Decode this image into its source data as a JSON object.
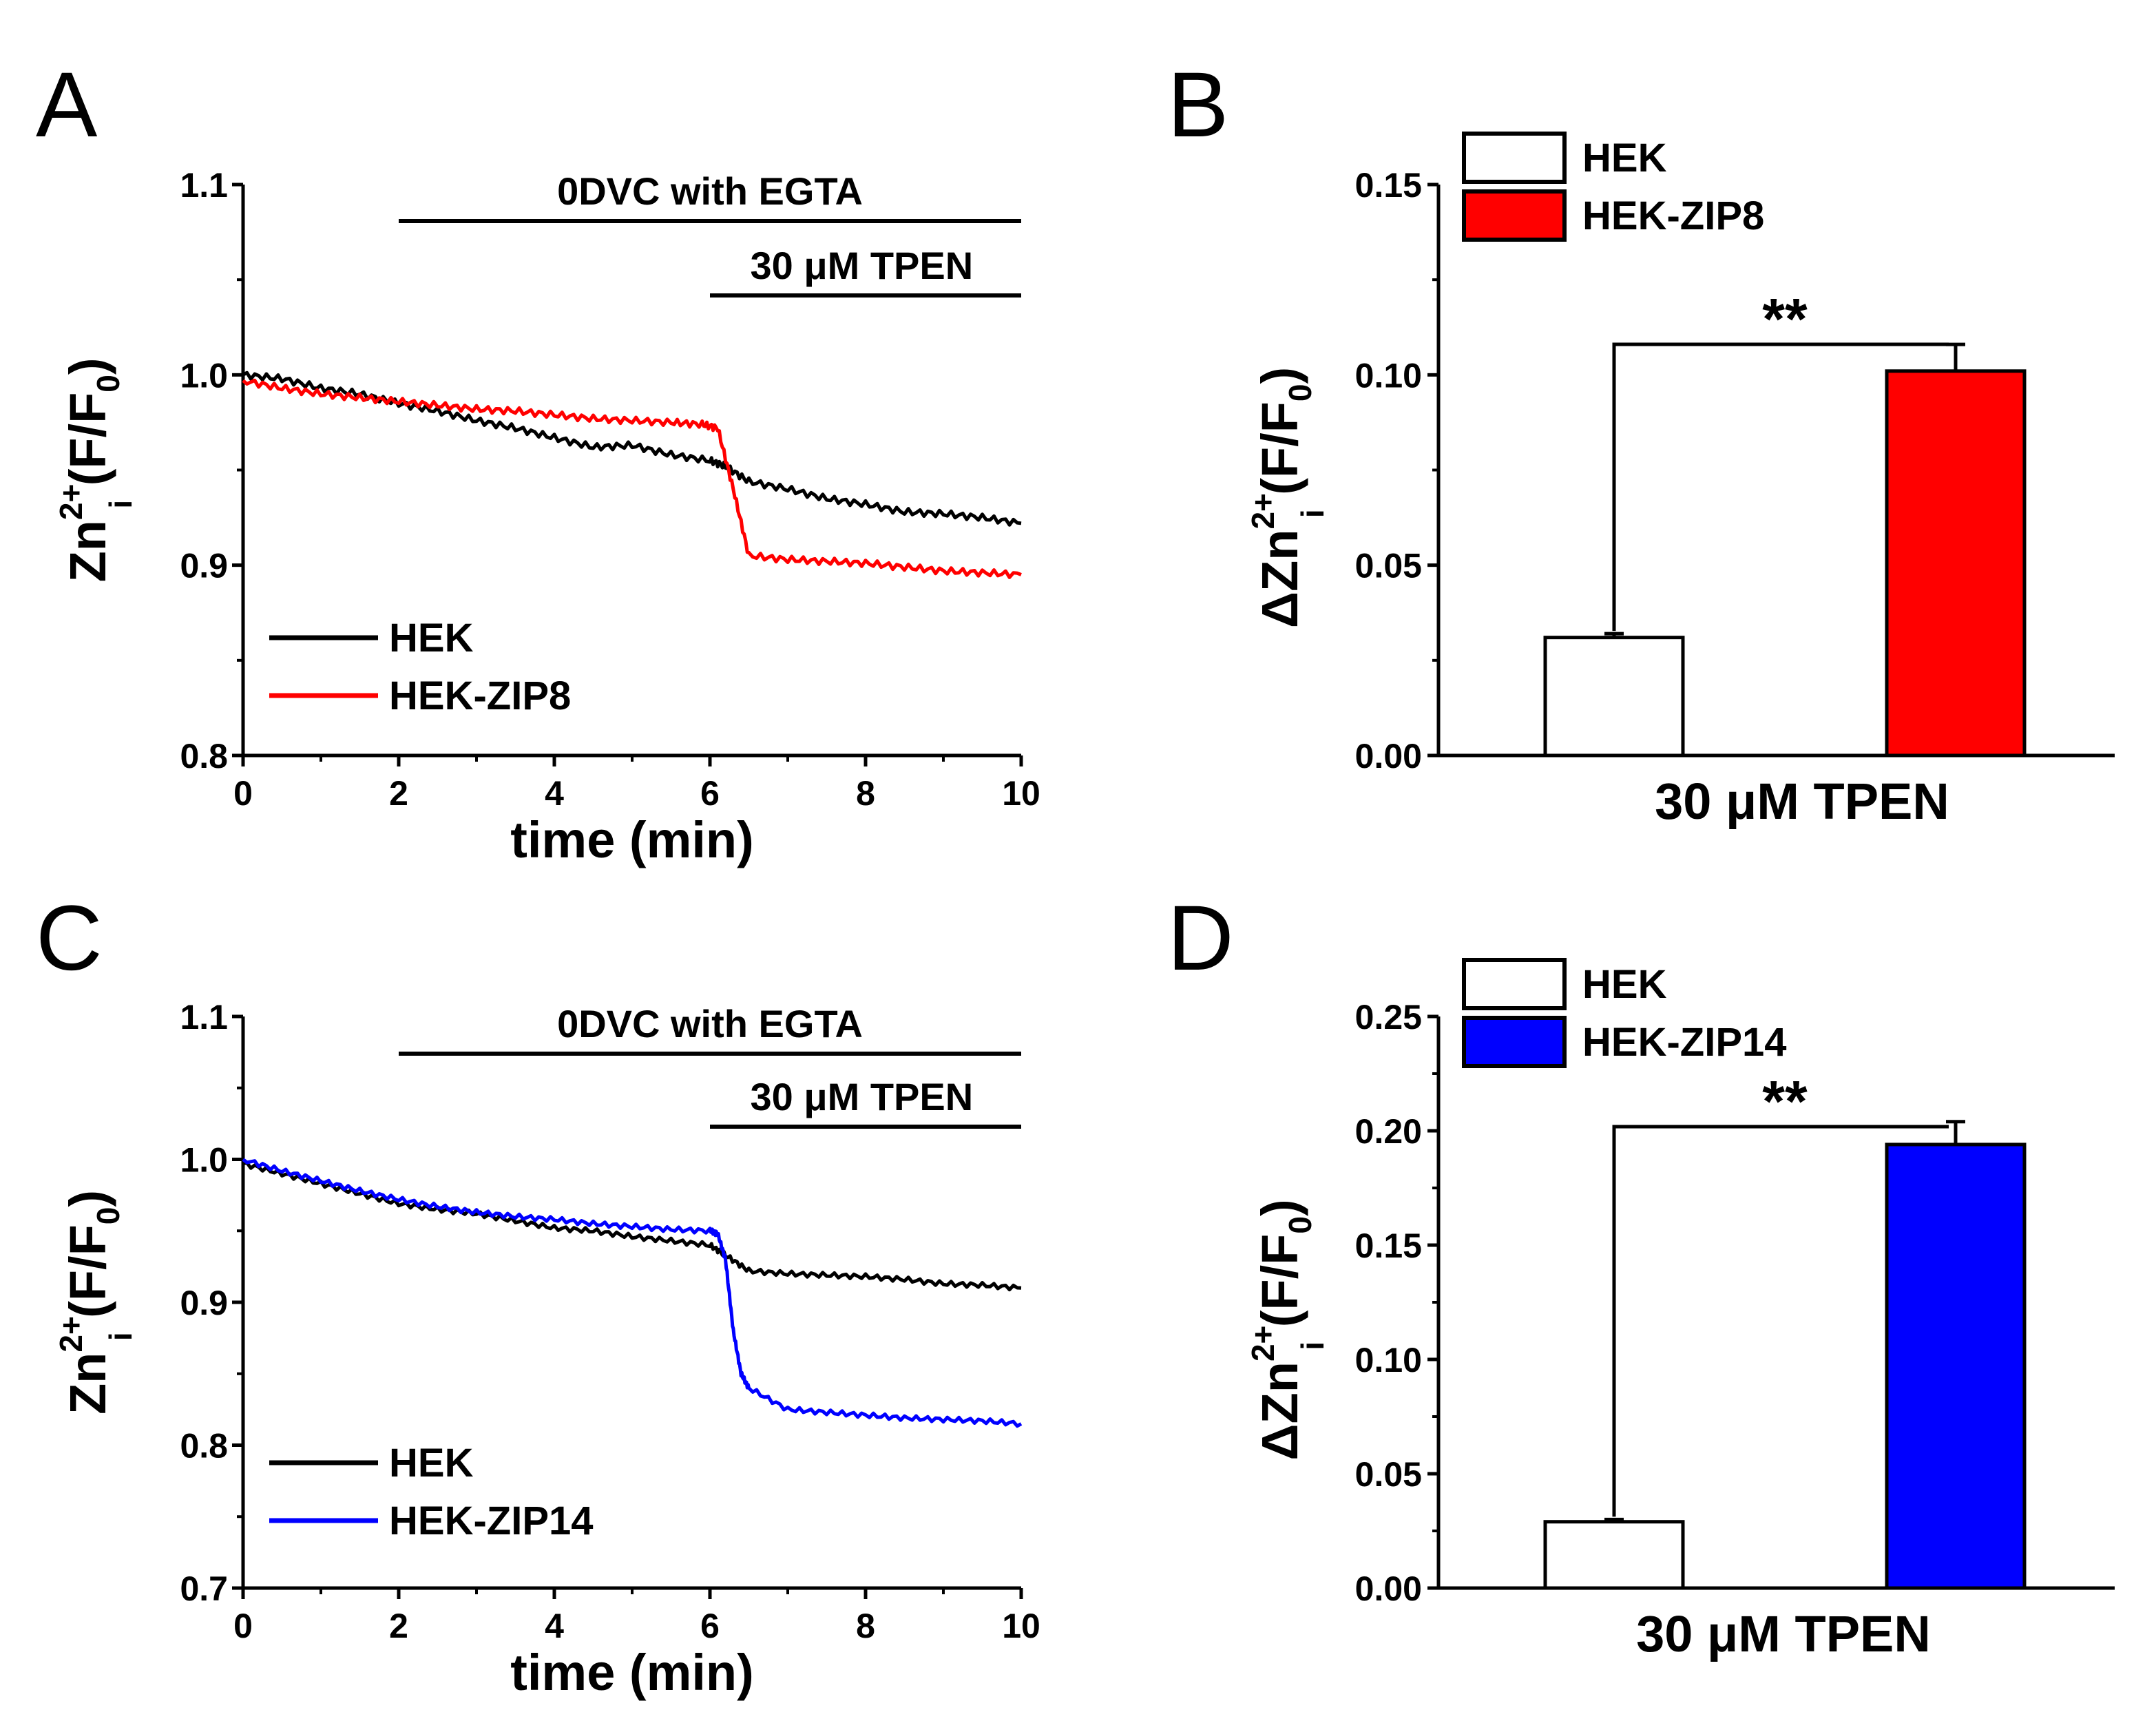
{
  "chart_data": [
    {
      "panel": "A",
      "type": "line",
      "xlabel": "time (min)",
      "ylabel": {
        "base": "Zn",
        "sup": "2+",
        "sub": "i",
        "rest": " (F/F",
        "rest_sub": "0",
        "close": ")"
      },
      "xlim": [
        0,
        10
      ],
      "ylim": [
        0.8,
        1.1
      ],
      "xticks": [
        "0",
        "2",
        "4",
        "6",
        "8",
        "10"
      ],
      "yticks": [
        "0.8",
        "0.9",
        "1.0",
        "1.1"
      ],
      "annotations": [
        {
          "label": "0DVC with EGTA",
          "x_start": 2,
          "x_end": 10
        },
        {
          "label": "30 μM TPEN",
          "x_start": 6,
          "x_end": 10
        }
      ],
      "legend": "bottom-left",
      "series": [
        {
          "name": "HEK",
          "color": "#000000",
          "x": [
            0,
            0.5,
            1,
            1.5,
            2,
            2.5,
            3,
            3.5,
            4,
            4.5,
            5,
            5.5,
            6,
            6.2,
            6.5,
            7,
            7.5,
            8,
            8.5,
            9,
            9.5,
            10
          ],
          "y": [
            1.0,
            0.998,
            0.993,
            0.99,
            0.985,
            0.981,
            0.976,
            0.972,
            0.967,
            0.962,
            0.963,
            0.958,
            0.955,
            0.952,
            0.944,
            0.94,
            0.935,
            0.932,
            0.928,
            0.927,
            0.925,
            0.922
          ]
        },
        {
          "name": "HEK-ZIP8",
          "color": "#ff0000",
          "x": [
            0,
            0.5,
            1,
            1.5,
            2,
            2.5,
            3,
            3.5,
            4,
            4.5,
            5,
            5.5,
            5.9,
            6.1,
            6.3,
            6.5,
            7,
            7.5,
            8,
            8.5,
            9,
            9.5,
            10
          ],
          "y": [
            0.997,
            0.993,
            0.99,
            0.988,
            0.986,
            0.984,
            0.982,
            0.981,
            0.979,
            0.977,
            0.976,
            0.975,
            0.974,
            0.972,
            0.94,
            0.905,
            0.903,
            0.902,
            0.901,
            0.899,
            0.897,
            0.896,
            0.895
          ]
        }
      ]
    },
    {
      "panel": "B",
      "type": "bar",
      "categories": [
        "HEK",
        "HEK-ZIP8"
      ],
      "values": [
        0.031,
        0.101
      ],
      "errors": [
        0.001,
        0.007
      ],
      "colors": [
        "#ffffff",
        "#ff0000"
      ],
      "xlabel": "30 μM TPEN",
      "ylabel": {
        "prefix": "Δ",
        "base": "Zn",
        "sup": "2+",
        "sub": "i",
        "rest": " (F/F",
        "rest_sub": "0",
        "close": ")"
      },
      "ylim": [
        0,
        0.15
      ],
      "yticks": [
        "0.00",
        "0.05",
        "0.10",
        "0.15"
      ],
      "significance": "**",
      "legend": "top-left"
    },
    {
      "panel": "C",
      "type": "line",
      "xlabel": "time (min)",
      "ylabel": {
        "base": "Zn",
        "sup": "2+",
        "sub": "i",
        "rest": " (F/F",
        "rest_sub": "0",
        "close": ")"
      },
      "xlim": [
        0,
        10
      ],
      "ylim": [
        0.7,
        1.1
      ],
      "xticks": [
        "0",
        "2",
        "4",
        "6",
        "8",
        "10"
      ],
      "yticks": [
        "0.7",
        "0.8",
        "0.9",
        "1.0",
        "1.1"
      ],
      "annotations": [
        {
          "label": "0DVC with EGTA",
          "x_start": 2,
          "x_end": 10
        },
        {
          "label": "30 μM TPEN",
          "x_start": 6,
          "x_end": 10
        }
      ],
      "legend": "bottom-left",
      "series": [
        {
          "name": "HEK",
          "color": "#000000",
          "x": [
            0,
            0.5,
            1,
            1.5,
            2,
            2.5,
            3,
            3.5,
            4,
            4.5,
            5,
            5.5,
            6,
            6.2,
            6.5,
            7,
            7.5,
            8,
            8.5,
            9,
            9.5,
            10
          ],
          "y": [
            0.997,
            0.99,
            0.983,
            0.976,
            0.969,
            0.965,
            0.962,
            0.957,
            0.952,
            0.95,
            0.946,
            0.943,
            0.94,
            0.933,
            0.922,
            0.92,
            0.919,
            0.918,
            0.916,
            0.913,
            0.912,
            0.91
          ]
        },
        {
          "name": "HEK-ZIP14",
          "color": "#0000ff",
          "x": [
            0,
            0.5,
            1,
            1.5,
            2,
            2.5,
            3,
            3.5,
            4,
            4.5,
            5,
            5.5,
            6,
            6.1,
            6.2,
            6.3,
            6.4,
            6.5,
            7,
            7.5,
            8,
            8.5,
            9,
            9.5,
            10
          ],
          "y": [
            1.0,
            0.992,
            0.985,
            0.978,
            0.972,
            0.967,
            0.963,
            0.96,
            0.958,
            0.955,
            0.953,
            0.951,
            0.95,
            0.948,
            0.93,
            0.88,
            0.85,
            0.84,
            0.825,
            0.823,
            0.821,
            0.819,
            0.818,
            0.817,
            0.815
          ]
        }
      ]
    },
    {
      "panel": "D",
      "type": "bar",
      "categories": [
        "HEK",
        "HEK-ZIP14"
      ],
      "values": [
        0.029,
        0.194
      ],
      "errors": [
        0.001,
        0.01
      ],
      "colors": [
        "#ffffff",
        "#0000ff"
      ],
      "xlabel": "30 μM TPEN",
      "ylabel": {
        "prefix": "Δ",
        "base": "Zn",
        "sup": "2+",
        "sub": "i",
        "rest": " (F/F",
        "rest_sub": "0",
        "close": ")"
      },
      "ylim": [
        0,
        0.25
      ],
      "yticks": [
        "0.00",
        "0.05",
        "0.10",
        "0.15",
        "0.20",
        "0.25"
      ],
      "significance": "**",
      "legend": "top-left"
    }
  ]
}
